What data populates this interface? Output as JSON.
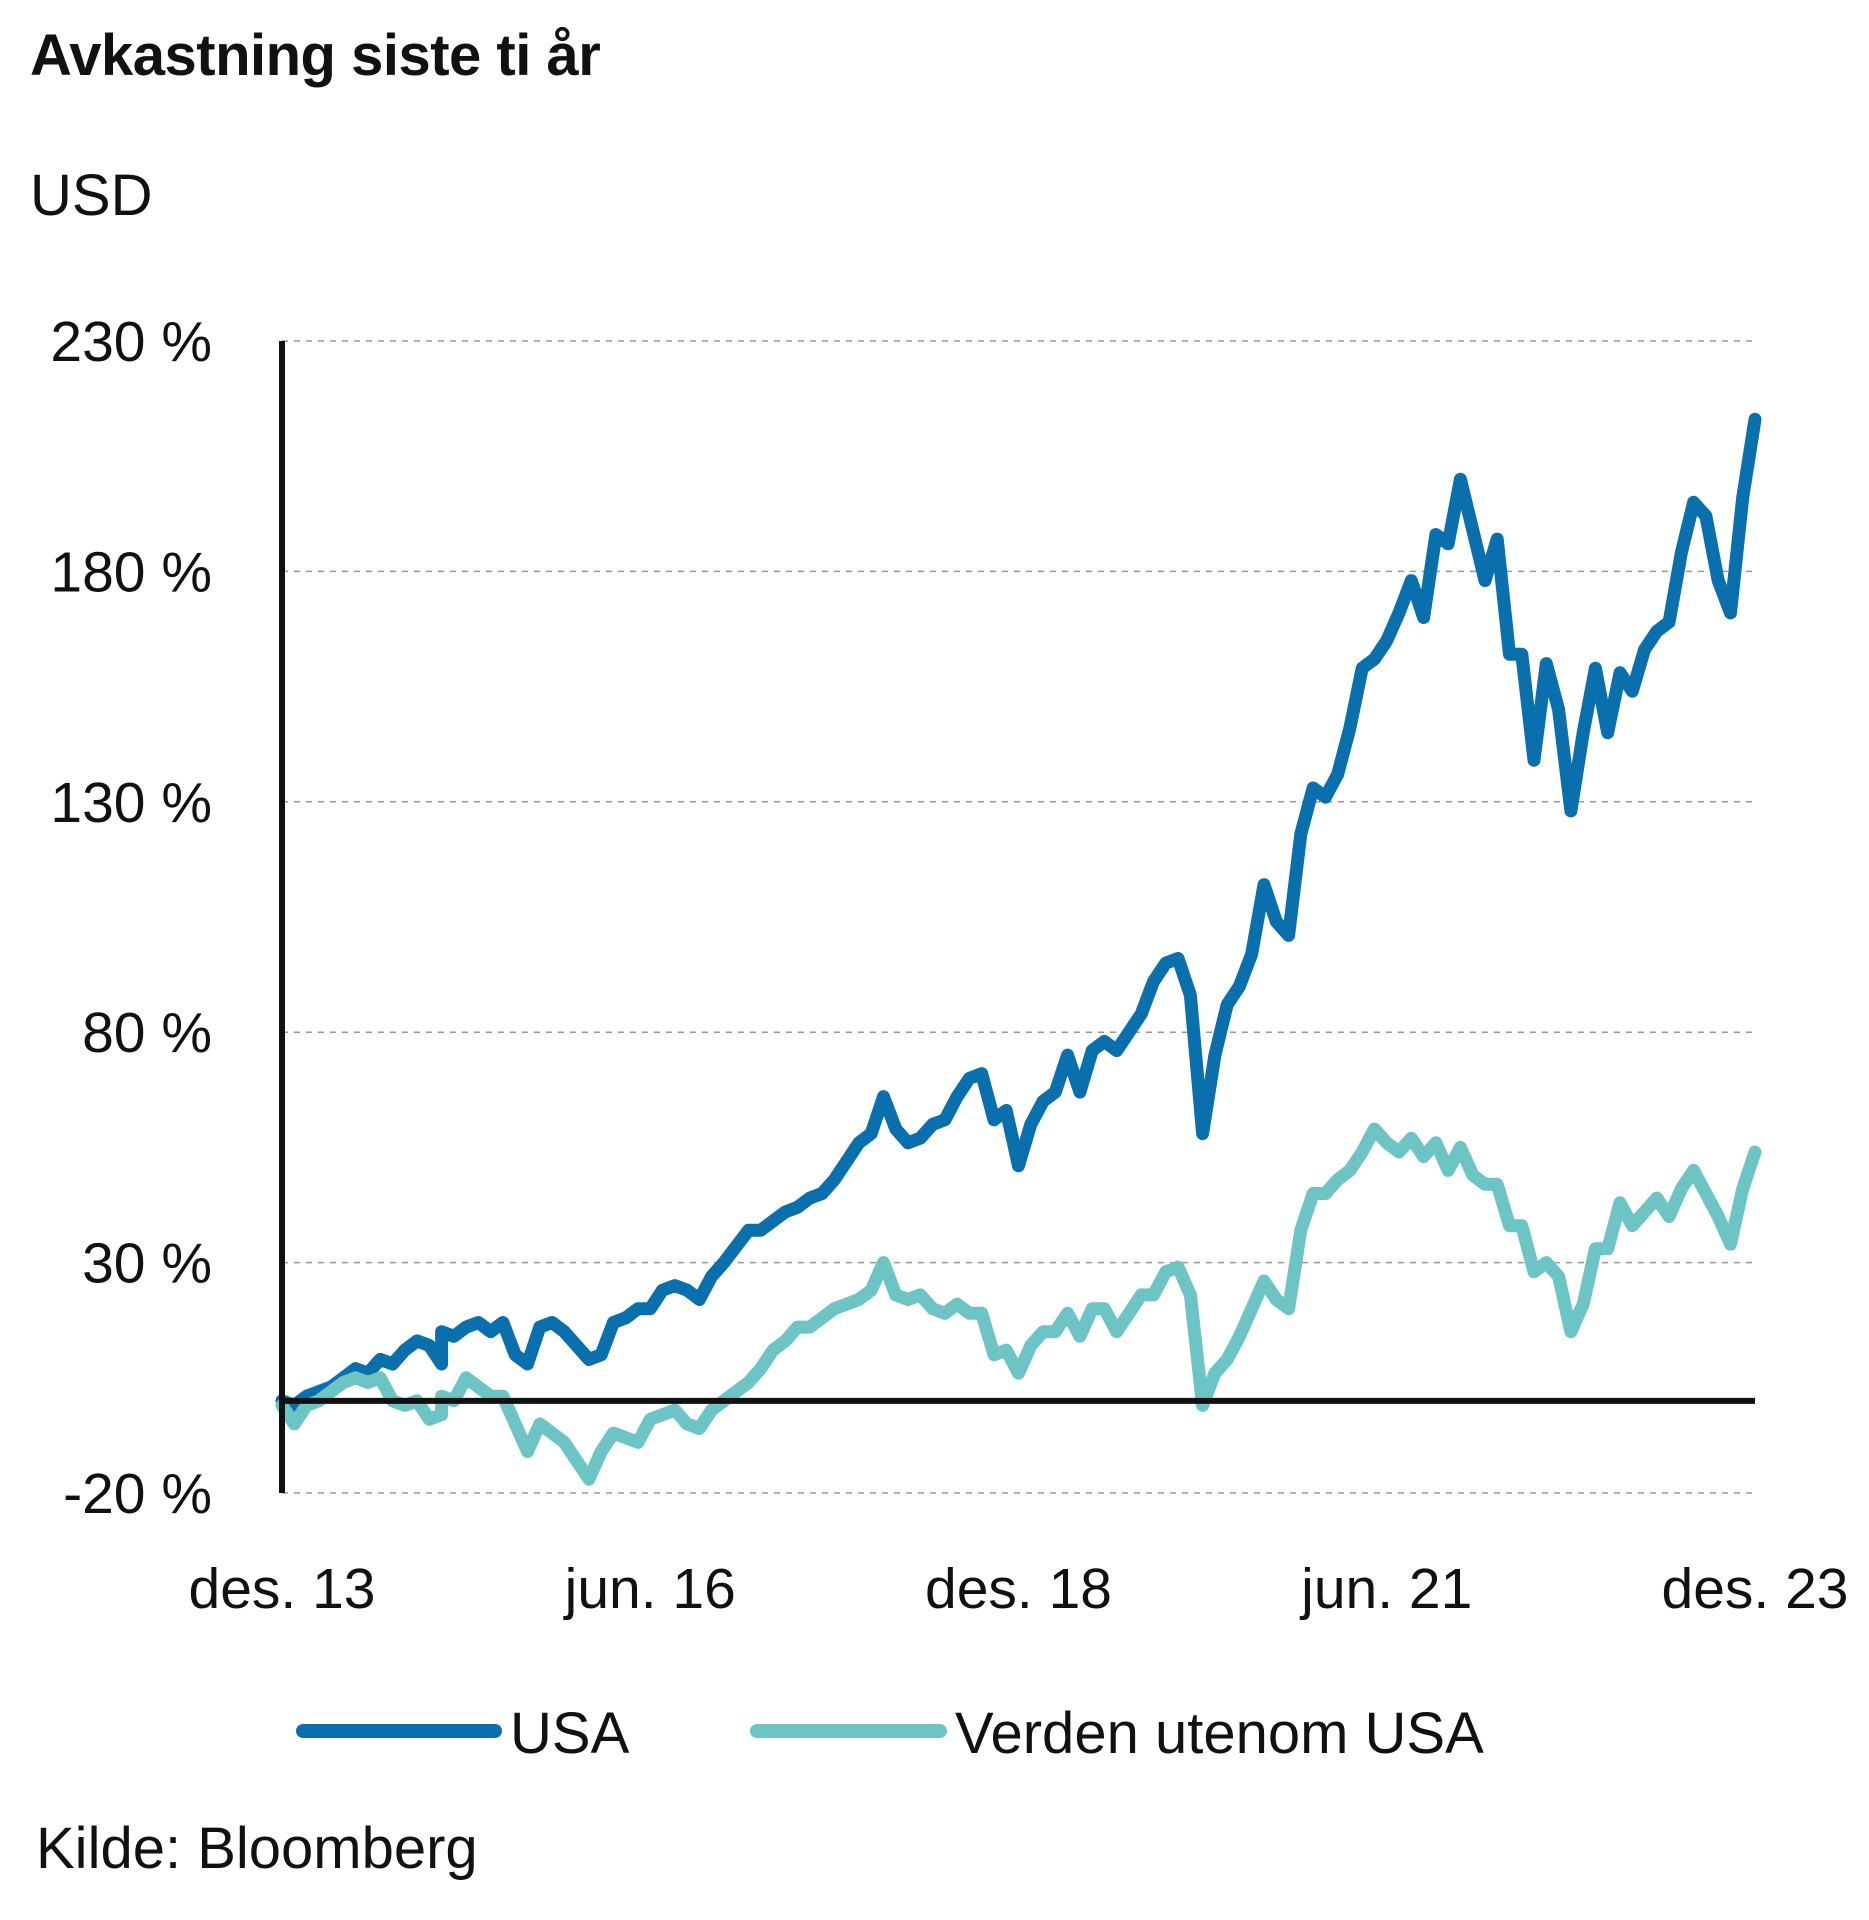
{
  "title": "Avkastning siste ti år",
  "unit": "USD",
  "source": "Kilde: Bloomberg",
  "colors": {
    "usa": "#0a6fad",
    "world": "#6cc5c4",
    "grid": "#9a9a8a",
    "axis": "#111111"
  },
  "chart_data": {
    "type": "line",
    "title": "Avkastning siste ti år",
    "ylabel": "USD",
    "xlabel": "",
    "ylim": [
      -20,
      230
    ],
    "yticks": [
      -20,
      30,
      80,
      130,
      180,
      230
    ],
    "ytick_labels": [
      "-20 %",
      "30 %",
      "80 %",
      "130 %",
      "180 %",
      "230 %"
    ],
    "xticks": [
      "2013-12",
      "2016-06",
      "2018-12",
      "2021-06",
      "2023-12"
    ],
    "xtick_labels": [
      "des. 13",
      "jun. 16",
      "des. 18",
      "jun. 21",
      "des. 23"
    ],
    "grid": "horizontal dashed",
    "legend_position": "bottom",
    "series": [
      {
        "name": "USA",
        "color": "#0a6fad",
        "points": [
          [
            "2013-12",
            0
          ],
          [
            "2014-01",
            -1
          ],
          [
            "2014-02",
            1
          ],
          [
            "2014-03",
            2
          ],
          [
            "2014-04",
            3
          ],
          [
            "2014-05",
            5
          ],
          [
            "2014-06",
            7
          ],
          [
            "2014-07",
            6
          ],
          [
            "2014-08",
            9
          ],
          [
            "2014-09",
            8
          ],
          [
            "2014-10",
            11
          ],
          [
            "2014-11",
            13
          ],
          [
            "2014-12",
            12
          ],
          [
            "2014-13",
            8
          ],
          [
            "2015-01",
            15
          ],
          [
            "2015-02",
            14
          ],
          [
            "2015-03",
            16
          ],
          [
            "2015-04",
            17
          ],
          [
            "2015-05",
            15
          ],
          [
            "2015-06",
            17
          ],
          [
            "2015-07",
            10
          ],
          [
            "2015-08",
            8
          ],
          [
            "2015-09",
            16
          ],
          [
            "2015-10",
            17
          ],
          [
            "2015-11",
            15
          ],
          [
            "2016-01",
            9
          ],
          [
            "2016-02",
            10
          ],
          [
            "2016-03",
            17
          ],
          [
            "2016-04",
            18
          ],
          [
            "2016-05",
            20
          ],
          [
            "2016-06",
            20
          ],
          [
            "2016-07",
            24
          ],
          [
            "2016-08",
            25
          ],
          [
            "2016-09",
            24
          ],
          [
            "2016-10",
            22
          ],
          [
            "2016-11",
            27
          ],
          [
            "2016-12",
            30
          ],
          [
            "2017-02",
            37
          ],
          [
            "2017-03",
            37
          ],
          [
            "2017-04",
            39
          ],
          [
            "2017-05",
            41
          ],
          [
            "2017-06",
            42
          ],
          [
            "2017-07",
            44
          ],
          [
            "2017-08",
            45
          ],
          [
            "2017-09",
            48
          ],
          [
            "2017-10",
            52
          ],
          [
            "2017-11",
            56
          ],
          [
            "2017-12",
            58
          ],
          [
            "2018-01",
            66
          ],
          [
            "2018-02",
            59
          ],
          [
            "2018-03",
            56
          ],
          [
            "2018-04",
            57
          ],
          [
            "2018-05",
            60
          ],
          [
            "2018-06",
            61
          ],
          [
            "2018-07",
            66
          ],
          [
            "2018-08",
            70
          ],
          [
            "2018-09",
            71
          ],
          [
            "2018-10",
            61
          ],
          [
            "2018-11",
            63
          ],
          [
            "2018-12",
            51
          ],
          [
            "2019-01",
            60
          ],
          [
            "2019-02",
            65
          ],
          [
            "2019-03",
            67
          ],
          [
            "2019-04",
            75
          ],
          [
            "2019-05",
            67
          ],
          [
            "2019-06",
            76
          ],
          [
            "2019-07",
            78
          ],
          [
            "2019-08",
            76
          ],
          [
            "2019-09",
            80
          ],
          [
            "2019-10",
            84
          ],
          [
            "2019-11",
            91
          ],
          [
            "2019-12",
            95
          ],
          [
            "2020-01",
            96
          ],
          [
            "2020-02",
            88
          ],
          [
            "2020-03",
            58
          ],
          [
            "2020-04",
            75
          ],
          [
            "2020-05",
            86
          ],
          [
            "2020-06",
            90
          ],
          [
            "2020-07",
            97
          ],
          [
            "2020-08",
            112
          ],
          [
            "2020-09",
            104
          ],
          [
            "2020-10",
            101
          ],
          [
            "2020-11",
            123
          ],
          [
            "2020-12",
            133
          ],
          [
            "2021-01",
            131
          ],
          [
            "2021-02",
            136
          ],
          [
            "2021-03",
            146
          ],
          [
            "2021-04",
            159
          ],
          [
            "2021-05",
            161
          ],
          [
            "2021-06",
            165
          ],
          [
            "2021-07",
            171
          ],
          [
            "2021-08",
            178
          ],
          [
            "2021-09",
            170
          ],
          [
            "2021-10",
            188
          ],
          [
            "2021-11",
            186
          ],
          [
            "2021-12",
            200
          ],
          [
            "2022-01",
            189
          ],
          [
            "2022-02",
            178
          ],
          [
            "2022-03",
            187
          ],
          [
            "2022-04",
            162
          ],
          [
            "2022-05",
            162
          ],
          [
            "2022-06",
            139
          ],
          [
            "2022-07",
            160
          ],
          [
            "2022-08",
            150
          ],
          [
            "2022-09",
            128
          ],
          [
            "2022-10",
            145
          ],
          [
            "2022-11",
            159
          ],
          [
            "2022-12",
            145
          ],
          [
            "2023-01",
            158
          ],
          [
            "2023-02",
            154
          ],
          [
            "2023-03",
            163
          ],
          [
            "2023-04",
            167
          ],
          [
            "2023-05",
            169
          ],
          [
            "2023-06",
            184
          ],
          [
            "2023-07",
            195
          ],
          [
            "2023-08",
            192
          ],
          [
            "2023-09",
            178
          ],
          [
            "2023-10",
            171
          ],
          [
            "2023-11",
            196
          ],
          [
            "2023-12",
            213
          ]
        ]
      },
      {
        "name": "Verden utenom USA",
        "color": "#6cc5c4",
        "points": [
          [
            "2013-12",
            -1
          ],
          [
            "2014-01",
            -5
          ],
          [
            "2014-02",
            -1
          ],
          [
            "2014-03",
            0
          ],
          [
            "2014-04",
            2
          ],
          [
            "2014-05",
            4
          ],
          [
            "2014-06",
            5
          ],
          [
            "2014-07",
            4
          ],
          [
            "2014-08",
            5
          ],
          [
            "2014-09",
            0
          ],
          [
            "2014-10",
            -1
          ],
          [
            "2014-11",
            0
          ],
          [
            "2014-12",
            -4
          ],
          [
            "2014-13",
            -3
          ],
          [
            "2015-01",
            1
          ],
          [
            "2015-02",
            0
          ],
          [
            "2015-03",
            5
          ],
          [
            "2015-04",
            3
          ],
          [
            "2015-05",
            1
          ],
          [
            "2015-06",
            1
          ],
          [
            "2015-07",
            -5
          ],
          [
            "2015-08",
            -11
          ],
          [
            "2015-09",
            -5
          ],
          [
            "2015-10",
            -7
          ],
          [
            "2015-11",
            -9
          ],
          [
            "2016-01",
            -17
          ],
          [
            "2016-02",
            -11
          ],
          [
            "2016-03",
            -7
          ],
          [
            "2016-04",
            -8
          ],
          [
            "2016-05",
            -9
          ],
          [
            "2016-06",
            -4
          ],
          [
            "2016-07",
            -3
          ],
          [
            "2016-08",
            -2
          ],
          [
            "2016-09",
            -5
          ],
          [
            "2016-10",
            -6
          ],
          [
            "2016-11",
            -2
          ],
          [
            "2016-12",
            0
          ],
          [
            "2017-02",
            4
          ],
          [
            "2017-03",
            7
          ],
          [
            "2017-04",
            11
          ],
          [
            "2017-05",
            13
          ],
          [
            "2017-06",
            16
          ],
          [
            "2017-07",
            16
          ],
          [
            "2017-08",
            18
          ],
          [
            "2017-09",
            20
          ],
          [
            "2017-10",
            21
          ],
          [
            "2017-11",
            22
          ],
          [
            "2017-12",
            24
          ],
          [
            "2018-01",
            30
          ],
          [
            "2018-02",
            23
          ],
          [
            "2018-03",
            22
          ],
          [
            "2018-04",
            23
          ],
          [
            "2018-05",
            20
          ],
          [
            "2018-06",
            19
          ],
          [
            "2018-07",
            21
          ],
          [
            "2018-08",
            19
          ],
          [
            "2018-09",
            19
          ],
          [
            "2018-10",
            10
          ],
          [
            "2018-11",
            11
          ],
          [
            "2018-12",
            6
          ],
          [
            "2019-01",
            12
          ],
          [
            "2019-02",
            15
          ],
          [
            "2019-03",
            15
          ],
          [
            "2019-04",
            19
          ],
          [
            "2019-05",
            14
          ],
          [
            "2019-06",
            20
          ],
          [
            "2019-07",
            20
          ],
          [
            "2019-08",
            15
          ],
          [
            "2019-09",
            19
          ],
          [
            "2019-10",
            23
          ],
          [
            "2019-11",
            23
          ],
          [
            "2019-12",
            28
          ],
          [
            "2020-01",
            29
          ],
          [
            "2020-02",
            23
          ],
          [
            "2020-03",
            -1
          ],
          [
            "2020-04",
            6
          ],
          [
            "2020-05",
            9
          ],
          [
            "2020-06",
            14
          ],
          [
            "2020-07",
            20
          ],
          [
            "2020-08",
            26
          ],
          [
            "2020-09",
            22
          ],
          [
            "2020-10",
            20
          ],
          [
            "2020-11",
            37
          ],
          [
            "2020-12",
            45
          ],
          [
            "2021-01",
            45
          ],
          [
            "2021-02",
            48
          ],
          [
            "2021-03",
            50
          ],
          [
            "2021-04",
            54
          ],
          [
            "2021-05",
            59
          ],
          [
            "2021-06",
            56
          ],
          [
            "2021-07",
            54
          ],
          [
            "2021-08",
            57
          ],
          [
            "2021-09",
            53
          ],
          [
            "2021-10",
            56
          ],
          [
            "2021-11",
            50
          ],
          [
            "2021-12",
            55
          ],
          [
            "2022-01",
            49
          ],
          [
            "2022-02",
            47
          ],
          [
            "2022-03",
            47
          ],
          [
            "2022-04",
            38
          ],
          [
            "2022-05",
            38
          ],
          [
            "2022-06",
            28
          ],
          [
            "2022-07",
            30
          ],
          [
            "2022-08",
            27
          ],
          [
            "2022-09",
            15
          ],
          [
            "2022-10",
            21
          ],
          [
            "2022-11",
            33
          ],
          [
            "2022-12",
            33
          ],
          [
            "2023-01",
            43
          ],
          [
            "2023-02",
            38
          ],
          [
            "2023-03",
            41
          ],
          [
            "2023-04",
            44
          ],
          [
            "2023-05",
            40
          ],
          [
            "2023-06",
            46
          ],
          [
            "2023-07",
            50
          ],
          [
            "2023-08",
            45
          ],
          [
            "2023-09",
            40
          ],
          [
            "2023-10",
            34
          ],
          [
            "2023-11",
            46
          ],
          [
            "2023-12",
            54
          ]
        ]
      }
    ]
  }
}
